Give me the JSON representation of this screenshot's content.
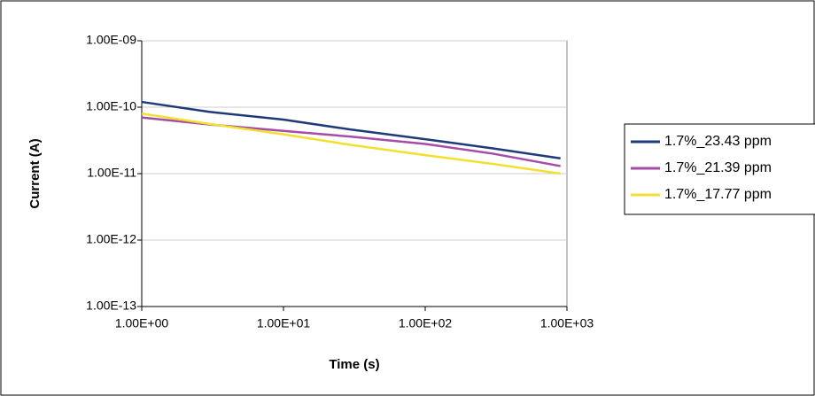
{
  "chart_data": {
    "type": "line",
    "xscale": "log",
    "yscale": "log",
    "grid": true,
    "x_label": "Time (s)",
    "y_label": "Current (A)",
    "x": [
      1,
      3,
      10,
      30,
      100,
      300,
      900
    ],
    "series": [
      {
        "name": "1.7%_23.43 ppm",
        "color": "#1f3a78",
        "values": [
          1.2e-10,
          8.5e-11,
          6.5e-11,
          4.6e-11,
          3.3e-11,
          2.4e-11,
          1.7e-11
        ]
      },
      {
        "name": "1.7%_21.39 ppm",
        "color": "#a64ca6",
        "values": [
          7e-11,
          5.5e-11,
          4.4e-11,
          3.6e-11,
          2.8e-11,
          2e-11,
          1.3e-11
        ]
      },
      {
        "name": "1.7%_17.77 ppm",
        "color": "#f2e030",
        "values": [
          8e-11,
          5.6e-11,
          3.9e-11,
          2.7e-11,
          1.9e-11,
          1.4e-11,
          1e-11
        ]
      }
    ],
    "xlim": [
      1,
      1000
    ],
    "xticks": [
      {
        "value": 1,
        "label": "1.00E+00"
      },
      {
        "value": 10,
        "label": "1.00E+01"
      },
      {
        "value": 100,
        "label": "1.00E+02"
      },
      {
        "value": 1000,
        "label": "1.00E+03"
      }
    ],
    "ylim": [
      1e-13,
      1e-09
    ],
    "yticks": [
      {
        "value": 1e-13,
        "label": "1.00E-13"
      },
      {
        "value": 1e-12,
        "label": "1.00E-12"
      },
      {
        "value": 1e-11,
        "label": "1.00E-11"
      },
      {
        "value": 1e-10,
        "label": "1.00E-10"
      },
      {
        "value": 1e-09,
        "label": "1.00E-09"
      }
    ],
    "legend": "right"
  }
}
